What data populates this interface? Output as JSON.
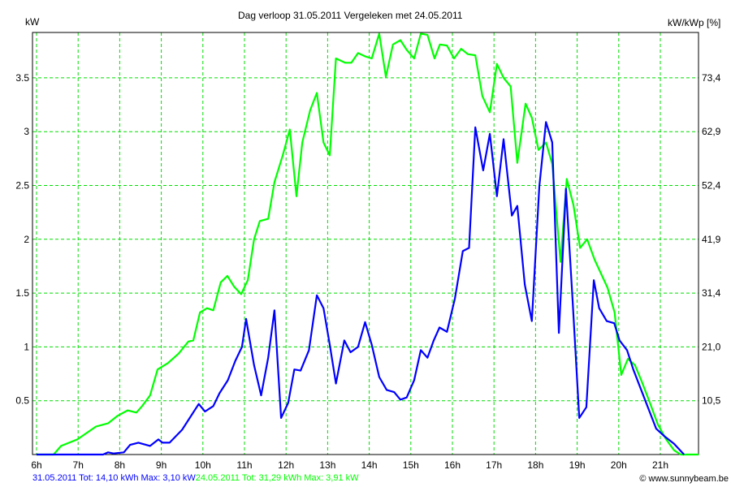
{
  "chart_data": {
    "type": "line",
    "title": "Dag  verloop 31.05.2011   Vergeleken met 24.05.2011",
    "ylabel": "kW",
    "ylabel_right": "kW/kWp [%]",
    "xlabel": "",
    "xlim": [
      6,
      21.92
    ],
    "ylim": [
      0,
      3.92
    ],
    "grid": true,
    "x_ticks": [
      "6h",
      "7h",
      "8h",
      "9h",
      "10h",
      "11h",
      "12h",
      "13h",
      "14h",
      "15h",
      "16h",
      "17h",
      "18h",
      "19h",
      "20h",
      "21h"
    ],
    "y_ticks": [
      "0.5",
      "1",
      "1.5",
      "2",
      "2.5",
      "3",
      "3.5"
    ],
    "y_ticks_right": [
      "10,5",
      "21,0",
      "31,4",
      "41,9",
      "52,4",
      "62,9",
      "73,4"
    ],
    "series": [
      {
        "name": "31.05.2011 Tot: 14,10 kWh Max: 3,10 kW",
        "color": "#0000ff",
        "x": [
          6,
          7.6,
          7.72,
          7.85,
          8.1,
          8.25,
          8.45,
          8.73,
          8.93,
          9.03,
          9.2,
          9.5,
          9.75,
          9.9,
          10.05,
          10.25,
          10.4,
          10.6,
          10.78,
          10.94,
          11.04,
          11.23,
          11.4,
          11.57,
          11.72,
          11.88,
          12.05,
          12.2,
          12.35,
          12.55,
          12.74,
          12.9,
          13.05,
          13.2,
          13.4,
          13.55,
          13.73,
          13.9,
          14.06,
          14.24,
          14.42,
          14.6,
          14.75,
          14.9,
          15.08,
          15.24,
          15.4,
          15.55,
          15.69,
          15.87,
          16.06,
          16.25,
          16.4,
          16.55,
          16.74,
          16.9,
          17.07,
          17.23,
          17.43,
          17.56,
          17.74,
          17.91,
          18.09,
          18.25,
          18.4,
          18.56,
          18.73,
          18.89,
          19.05,
          19.22,
          19.4,
          19.53,
          19.71,
          19.89,
          20.02,
          20.2,
          20.35,
          20.69,
          20.9,
          21.1,
          21.33,
          21.57
        ],
        "values": [
          0,
          0,
          0.02,
          0.01,
          0.02,
          0.09,
          0.11,
          0.08,
          0.14,
          0.11,
          0.11,
          0.23,
          0.38,
          0.47,
          0.4,
          0.45,
          0.57,
          0.69,
          0.87,
          1.0,
          1.26,
          0.83,
          0.55,
          0.9,
          1.34,
          0.34,
          0.48,
          0.79,
          0.78,
          0.97,
          1.48,
          1.36,
          1.02,
          0.66,
          1.06,
          0.95,
          1.0,
          1.23,
          1.02,
          0.72,
          0.6,
          0.58,
          0.51,
          0.53,
          0.69,
          0.97,
          0.9,
          1.06,
          1.18,
          1.14,
          1.45,
          1.89,
          1.92,
          3.04,
          2.64,
          2.98,
          2.4,
          2.93,
          2.22,
          2.31,
          1.58,
          1.24,
          2.49,
          3.09,
          2.9,
          1.13,
          2.47,
          1.43,
          0.34,
          0.44,
          1.62,
          1.36,
          1.24,
          1.22,
          1.06,
          0.97,
          0.79,
          0.45,
          0.24,
          0.17,
          0.1,
          0
        ]
      },
      {
        "name": "24.05.2011 Tot: 31,29 kWh Max: 3,91 kW",
        "color": "#00ff00",
        "x": [
          6,
          6.41,
          6.59,
          6.98,
          7.43,
          7.72,
          7.95,
          8.19,
          8.4,
          8.54,
          8.73,
          8.91,
          9.16,
          9.42,
          9.65,
          9.77,
          9.93,
          10.1,
          10.25,
          10.43,
          10.59,
          10.75,
          10.92,
          11.08,
          11.23,
          11.37,
          11.57,
          11.72,
          11.92,
          12.09,
          12.25,
          12.39,
          12.58,
          12.74,
          12.9,
          13.05,
          13.2,
          13.42,
          13.57,
          13.73,
          13.9,
          14.06,
          14.24,
          14.4,
          14.57,
          14.75,
          14.9,
          15.08,
          15.24,
          15.4,
          15.57,
          15.7,
          15.87,
          16.04,
          16.21,
          16.37,
          16.55,
          16.72,
          16.9,
          17.07,
          17.23,
          17.4,
          17.56,
          17.76,
          17.91,
          18.07,
          18.25,
          18.4,
          18.6,
          18.75,
          18.91,
          19.07,
          19.24,
          19.42,
          19.73,
          19.9,
          20.06,
          20.22,
          20.39,
          20.55,
          20.75,
          20.94,
          21.14,
          21.33,
          21.49,
          21.92
        ],
        "values": [
          0,
          0,
          0.08,
          0.14,
          0.26,
          0.29,
          0.36,
          0.41,
          0.39,
          0.45,
          0.55,
          0.79,
          0.85,
          0.94,
          1.05,
          1.06,
          1.32,
          1.36,
          1.34,
          1.6,
          1.66,
          1.56,
          1.49,
          1.62,
          2.0,
          2.17,
          2.19,
          2.53,
          2.78,
          3.02,
          2.4,
          2.9,
          3.2,
          3.36,
          2.9,
          2.78,
          3.68,
          3.64,
          3.64,
          3.73,
          3.7,
          3.68,
          3.91,
          3.51,
          3.81,
          3.85,
          3.76,
          3.68,
          3.91,
          3.9,
          3.68,
          3.81,
          3.8,
          3.68,
          3.77,
          3.72,
          3.71,
          3.33,
          3.18,
          3.63,
          3.5,
          3.42,
          2.71,
          3.26,
          3.13,
          2.83,
          2.9,
          2.7,
          1.79,
          2.56,
          2.32,
          1.92,
          2.0,
          1.81,
          1.55,
          1.32,
          0.74,
          0.89,
          0.83,
          0.68,
          0.48,
          0.28,
          0.14,
          0.04,
          0,
          0
        ]
      }
    ],
    "copyright": "© www.sunnybeam.be"
  }
}
